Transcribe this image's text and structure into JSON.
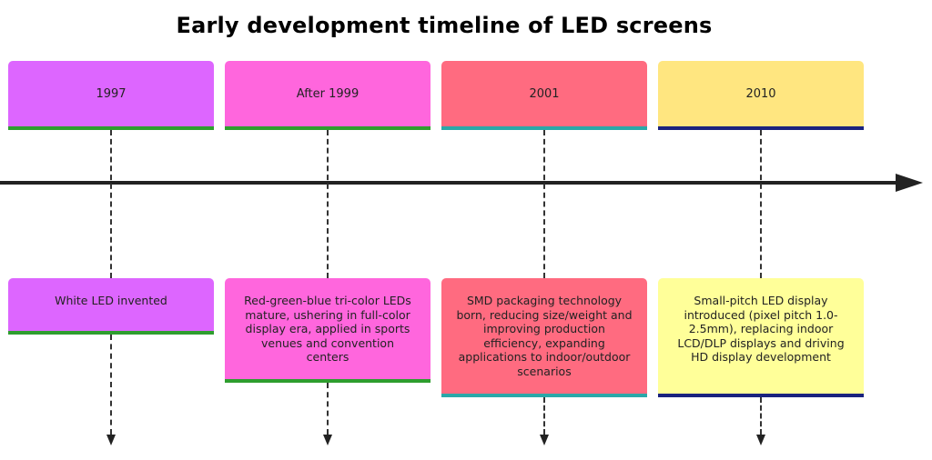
{
  "title": "Early development timeline of LED screens",
  "colors": {
    "axis": "#222222",
    "connector": "#333333"
  },
  "periods": [
    {
      "year": "1997",
      "event": "White LED invented",
      "fill": "#dd66ff",
      "underline": "#2e9e2e"
    },
    {
      "year": "After 1999",
      "event": "Red-green-blue tri-color LEDs mature, ushering in full-color display era, applied in sports venues and convention centers",
      "fill": "#ff66dd",
      "underline": "#2e9e2e"
    },
    {
      "year": "2001",
      "event": "SMD packaging technology born, reducing size/weight and improving production efficiency, expanding applications to indoor/outdoor scenarios",
      "fill": "#ff6b80",
      "underline": "#2aa8a8"
    },
    {
      "year": "2010",
      "event": "Small-pitch LED display introduced (pixel pitch 1.0-2.5mm), replacing indoor LCD/DLP displays and driving HD display development",
      "fill": "#ffe680",
      "eventFill": "#ffff99",
      "underline": "#1a237e"
    }
  ]
}
